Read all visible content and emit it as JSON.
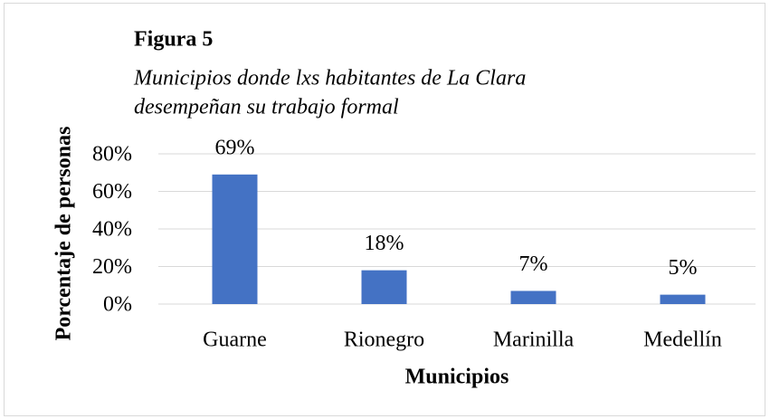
{
  "chart_data": {
    "type": "bar",
    "title": "Figura 5",
    "subtitle": [
      "Municipios donde lxs habitantes de La Clara",
      "desempeñan su trabajo formal"
    ],
    "ylabel": "Porcentaje de personas",
    "xlabel": "Municipios",
    "categories": [
      "Guarne",
      "Rionegro",
      "Marinilla",
      "Medellín"
    ],
    "values": [
      69,
      18,
      7,
      5
    ],
    "value_labels": [
      "69%",
      "18%",
      "7%",
      "5%"
    ],
    "color": "#4472c4",
    "ylim": [
      0,
      80
    ],
    "yticks": [
      {
        "value": 0,
        "label": "0%"
      },
      {
        "value": 20,
        "label": "20%"
      },
      {
        "value": 40,
        "label": "40%"
      },
      {
        "value": 60,
        "label": "60%"
      },
      {
        "value": 80,
        "label": "80%"
      }
    ],
    "grid": true
  }
}
